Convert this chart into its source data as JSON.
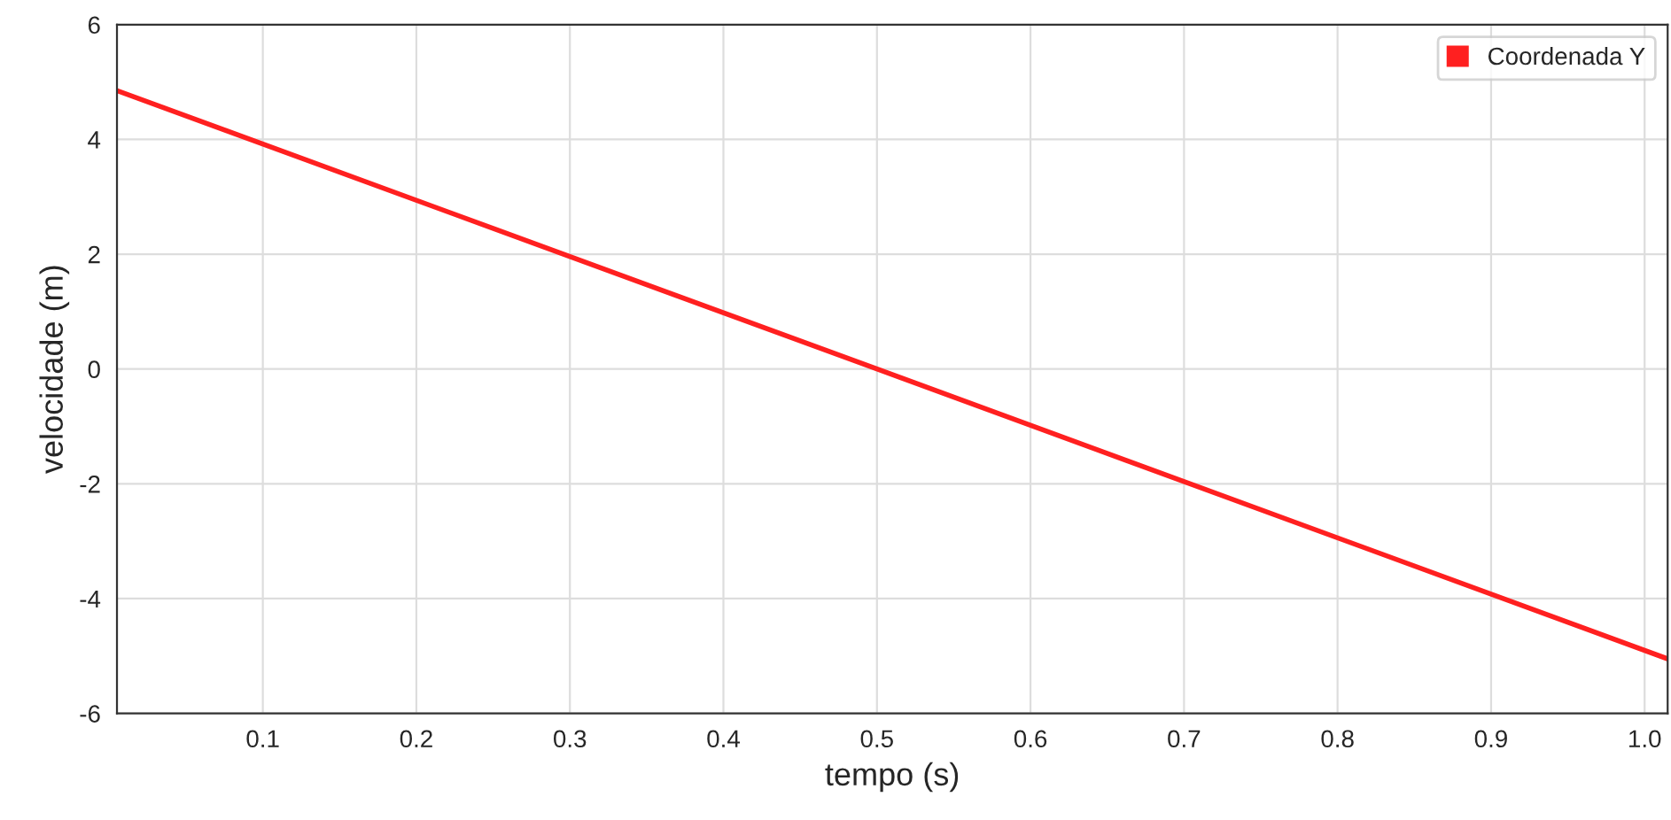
{
  "chart_data": {
    "type": "line",
    "xlabel": "tempo (s)",
    "ylabel": "velocidade (m)",
    "x": [
      0.005,
      0.5,
      1.015
    ],
    "series": [
      {
        "name": "Coordenada Y",
        "color": "#ff2020",
        "values": [
          4.85,
          0,
          -5.05
        ]
      }
    ],
    "xlim": [
      0.005,
      1.015
    ],
    "xticks": [
      0.1,
      0.2,
      0.3,
      0.4,
      0.5,
      0.6,
      0.7,
      0.8,
      0.9,
      {
        "value": 1.0,
        "label": "1.0"
      }
    ],
    "ylim": [
      -6,
      6
    ],
    "yticks": [
      -6,
      -4,
      -2,
      0,
      2,
      4,
      6
    ],
    "grid": true,
    "legend": "top right",
    "marker": "none",
    "line_style": "solid"
  }
}
